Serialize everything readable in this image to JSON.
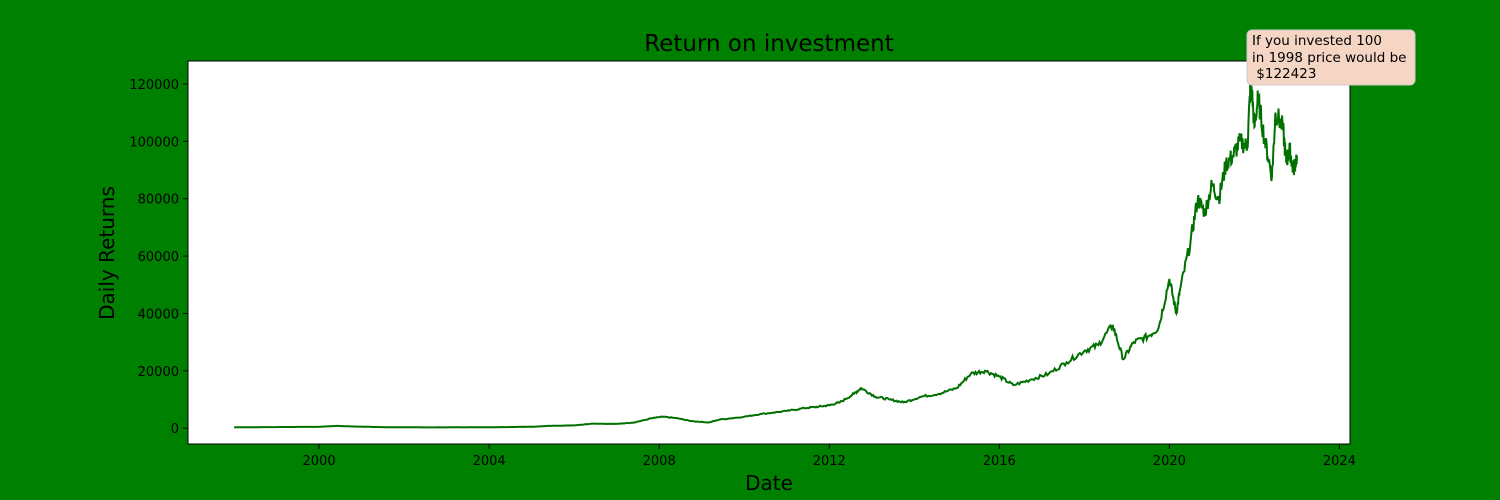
{
  "page": {
    "background": "#008000"
  },
  "chart_data": {
    "type": "line",
    "title": "Return on investment",
    "xlabel": "Date",
    "ylabel": "Daily Returns",
    "xlim": [
      "1996-12-01",
      "2024-04-01"
    ],
    "ylim": [
      -5500,
      128000
    ],
    "x_ticks": [
      "2000",
      "2004",
      "2008",
      "2012",
      "2016",
      "2020",
      "2024"
    ],
    "y_ticks": [
      "0",
      "20000",
      "40000",
      "60000",
      "80000",
      "100000",
      "120000"
    ],
    "grid": false,
    "line_color": "#007000",
    "annotation": {
      "lines": [
        "If you invested 100",
        "in 1998 price would be",
        " $122423"
      ],
      "point": {
        "x": "2021-12-01",
        "y": 122423
      },
      "box_color": "#f5d5c3"
    },
    "series": [
      {
        "x": [
          "1998-01-01",
          "1999-01-01",
          "2000-01-01",
          "2000-06-01",
          "2000-11-01",
          "2001-06-01",
          "2002-06-01",
          "2003-06-01",
          "2004-06-01",
          "2005-01-01",
          "2005-06-01",
          "2006-01-01",
          "2006-06-01",
          "2007-01-01",
          "2007-06-01",
          "2007-11-01",
          "2008-02-01",
          "2008-06-01",
          "2008-10-01",
          "2009-03-01",
          "2009-06-01",
          "2010-01-01",
          "2010-06-01",
          "2011-01-01",
          "2011-06-01",
          "2011-10-01",
          "2012-01-01",
          "2012-04-01",
          "2012-08-01",
          "2012-10-01",
          "2013-02-01",
          "2013-06-01",
          "2013-10-01",
          "2014-03-01",
          "2014-08-01",
          "2015-01-01",
          "2015-05-01",
          "2015-09-01",
          "2016-01-01",
          "2016-05-01",
          "2016-10-01",
          "2017-03-01",
          "2017-08-01",
          "2018-01-01",
          "2018-05-01",
          "2018-09-01",
          "2018-12-01",
          "2019-03-01",
          "2019-07-01",
          "2019-10-01",
          "2020-01-01",
          "2020-03-01",
          "2020-04-01",
          "2020-07-01",
          "2020-09-01",
          "2020-11-01",
          "2021-01-01",
          "2021-03-01",
          "2021-05-01",
          "2021-07-01",
          "2021-09-01",
          "2021-11-01",
          "2021-12-01",
          "2022-01-01",
          "2022-02-01",
          "2022-04-01",
          "2022-06-01",
          "2022-07-01",
          "2022-09-01",
          "2022-10-01",
          "2022-11-01",
          "2022-12-01",
          "2023-01-01"
        ],
        "y": [
          300,
          400,
          500,
          800,
          600,
          400,
          300,
          300,
          400,
          500,
          800,
          1000,
          1600,
          1500,
          2000,
          3500,
          4000,
          3500,
          2500,
          2000,
          3000,
          4000,
          5000,
          6000,
          7000,
          7500,
          8000,
          9000,
          12000,
          14000,
          11000,
          10000,
          9000,
          11000,
          12000,
          14000,
          19000,
          20000,
          18000,
          15000,
          17000,
          19000,
          23000,
          27000,
          29000,
          36000,
          24000,
          30000,
          32000,
          35000,
          52000,
          40000,
          48000,
          65000,
          80000,
          75000,
          85000,
          80000,
          92000,
          95000,
          100000,
          98000,
          122423,
          105000,
          115000,
          100000,
          88000,
          110000,
          105000,
          93000,
          97000,
          90000,
          95000
        ]
      }
    ]
  }
}
